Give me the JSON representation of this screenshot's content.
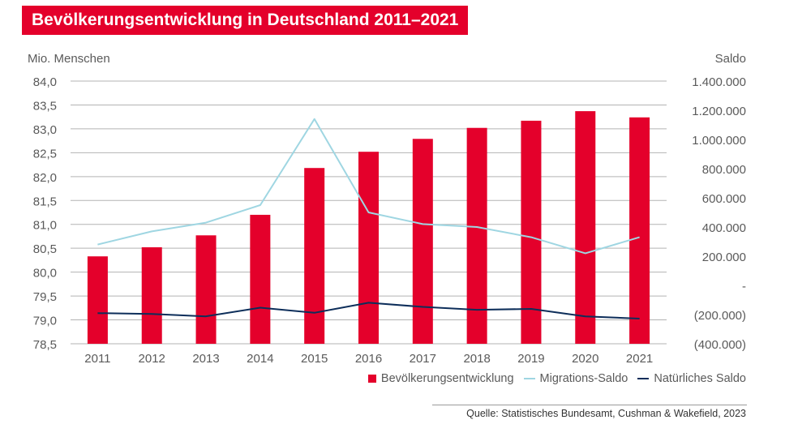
{
  "title": "Bevölkerungsentwicklung in Deutschland 2011–2021",
  "source": "Quelle: Statistisches Bundesamt, Cushman & Wakefield, 2023",
  "colors": {
    "bar": "#e4002b",
    "migration": "#9fd6e2",
    "natural": "#0d2e5a",
    "grid": "#b3b3b3",
    "text": "#5a5a5a"
  },
  "chart_data": {
    "type": "bar",
    "categories": [
      "2011",
      "2012",
      "2013",
      "2014",
      "2015",
      "2016",
      "2017",
      "2018",
      "2019",
      "2020",
      "2021"
    ],
    "y_left": {
      "label": "Mio. Menschen",
      "range": [
        78.5,
        84.0
      ],
      "ticks": [
        78.5,
        79.0,
        79.5,
        80.0,
        80.5,
        81.0,
        81.5,
        82.0,
        82.5,
        83.0,
        83.5,
        84.0
      ],
      "tick_labels": [
        "78,5",
        "79,0",
        "79,5",
        "80,0",
        "80,5",
        "81,0",
        "81,5",
        "82,0",
        "82,5",
        "83,0",
        "83,5",
        "84,0"
      ]
    },
    "y_right": {
      "label": "Saldo",
      "range": [
        -400000,
        1400000
      ],
      "ticks": [
        -400000,
        -200000,
        0,
        200000,
        400000,
        600000,
        800000,
        1000000,
        1200000,
        1400000
      ],
      "tick_labels": [
        "(400.000)",
        "(200.000)",
        "-",
        "200.000",
        "400.000",
        "600.000",
        "800.000",
        "1.000.000",
        "1.200.000",
        "1.400.000"
      ]
    },
    "series": [
      {
        "name": "Bevölkerungsentwicklung",
        "type": "bar",
        "axis": "left",
        "values": [
          80.33,
          80.52,
          80.77,
          81.2,
          82.18,
          82.52,
          82.79,
          83.02,
          83.17,
          83.37,
          83.24
        ]
      },
      {
        "name": "Migrations-Saldo",
        "type": "line",
        "axis": "right",
        "values": [
          280000,
          370000,
          430000,
          550000,
          1140000,
          500000,
          420000,
          400000,
          330000,
          220000,
          330000
        ]
      },
      {
        "name": "Natürliches Saldo",
        "type": "line",
        "axis": "right",
        "values": [
          -190000,
          -196000,
          -212000,
          -153000,
          -188000,
          -119000,
          -147000,
          -167000,
          -161000,
          -212000,
          -228000
        ]
      }
    ],
    "grid": true,
    "legend": "bottom-right"
  }
}
